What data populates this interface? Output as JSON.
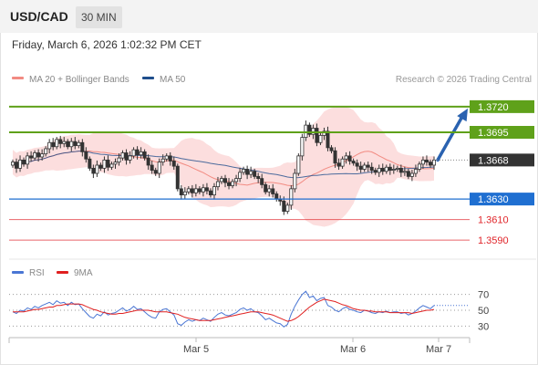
{
  "header": {
    "symbol": "USD/CAD",
    "timeframe": "30 MIN"
  },
  "datetime": "Friday, March 6, 2026 1:02:32 PM CET",
  "legend": {
    "bollinger": {
      "label": "MA 20 + Bollinger Bands",
      "color": "#f28b82"
    },
    "ma50": {
      "label": "MA 50",
      "color": "#1f4e8c"
    },
    "credit": "Research © 2026 Trading Central"
  },
  "rsi_legend": {
    "rsi": {
      "label": "RSI",
      "color": "#4a76d4"
    },
    "ma9": {
      "label": "9MA",
      "color": "#e02020"
    }
  },
  "chart_data": [
    {
      "type": "candlestick",
      "x_labels": [
        "Mar 5",
        "Mar 6",
        "Mar 7"
      ],
      "ylim": [
        1.3575,
        1.3735
      ],
      "levels": [
        {
          "value": 1.372,
          "label": "1.3720",
          "kind": "resistance",
          "color": "#5fa11a"
        },
        {
          "value": 1.3695,
          "label": "1.3695",
          "kind": "resistance",
          "color": "#5fa11a"
        },
        {
          "value": 1.3668,
          "label": "1.3668",
          "kind": "current",
          "color": "#333333"
        },
        {
          "value": 1.363,
          "label": "1.3630",
          "kind": "pivot",
          "color": "#1f6fd1"
        },
        {
          "value": 1.361,
          "label": "1.3610",
          "kind": "support",
          "color": "#e0252a"
        },
        {
          "value": 1.359,
          "label": "1.3590",
          "kind": "support",
          "color": "#e0252a"
        }
      ],
      "closes": [
        1.3666,
        1.366,
        1.3668,
        1.3664,
        1.3672,
        1.367,
        1.3675,
        1.3671,
        1.3674,
        1.3679,
        1.3685,
        1.3681,
        1.3688,
        1.3684,
        1.3686,
        1.3681,
        1.3686,
        1.3682,
        1.3685,
        1.3676,
        1.3669,
        1.366,
        1.3655,
        1.3663,
        1.366,
        1.3668,
        1.3661,
        1.3664,
        1.3666,
        1.367,
        1.3675,
        1.3668,
        1.3672,
        1.3678,
        1.3673,
        1.3676,
        1.367,
        1.3663,
        1.3658,
        1.3655,
        1.3666,
        1.3669,
        1.3672,
        1.3667,
        1.3662,
        1.364,
        1.3634,
        1.3637,
        1.364,
        1.3636,
        1.364,
        1.3637,
        1.3641,
        1.3638,
        1.3634,
        1.3642,
        1.3647,
        1.365,
        1.3646,
        1.3643,
        1.3647,
        1.365,
        1.3656,
        1.3659,
        1.3654,
        1.3657,
        1.3652,
        1.365,
        1.3644,
        1.3637,
        1.364,
        1.3635,
        1.363,
        1.3628,
        1.3618,
        1.3624,
        1.364,
        1.3655,
        1.3672,
        1.369,
        1.3702,
        1.3693,
        1.3699,
        1.3685,
        1.3692,
        1.3696,
        1.368,
        1.3677,
        1.3665,
        1.3662,
        1.3669,
        1.3672,
        1.3667,
        1.3665,
        1.3662,
        1.3659,
        1.3663,
        1.3661,
        1.3658,
        1.3656,
        1.366,
        1.3657,
        1.3661,
        1.3658,
        1.3659,
        1.366,
        1.3656,
        1.3657,
        1.3652,
        1.3655,
        1.3659,
        1.3664,
        1.3668,
        1.3666,
        1.3663,
        1.3668
      ],
      "forecast": {
        "from": 1.3668,
        "to": 1.372
      }
    },
    {
      "type": "line",
      "name": "RSI",
      "ylim": [
        20,
        80
      ],
      "ticks": [
        70,
        50,
        30
      ],
      "series": [
        {
          "name": "RSI",
          "values": [
            48,
            46,
            50,
            49,
            53,
            51,
            55,
            53,
            56,
            58,
            60,
            57,
            62,
            59,
            60,
            56,
            60,
            57,
            58,
            52,
            47,
            42,
            40,
            45,
            43,
            48,
            44,
            46,
            47,
            50,
            53,
            49,
            51,
            55,
            51,
            52,
            48,
            44,
            41,
            40,
            48,
            51,
            52,
            48,
            44,
            33,
            31,
            35,
            38,
            36,
            38,
            37,
            40,
            38,
            36,
            41,
            45,
            47,
            44,
            43,
            45,
            47,
            51,
            53,
            50,
            52,
            48,
            47,
            43,
            38,
            40,
            37,
            34,
            33,
            29,
            32,
            45,
            55,
            63,
            70,
            74,
            66,
            68,
            62,
            65,
            66,
            56,
            54,
            50,
            48,
            52,
            54,
            51,
            50,
            48,
            47,
            50,
            49,
            47,
            46,
            48,
            47,
            49,
            47,
            48,
            48,
            46,
            47,
            44,
            46,
            49,
            53,
            56,
            54,
            52,
            56
          ]
        },
        {
          "name": "9MA",
          "values": [
            48,
            48,
            48,
            48,
            49,
            50,
            51,
            51,
            52,
            53,
            54,
            54,
            56,
            56,
            57,
            58,
            58,
            58,
            58,
            57,
            55,
            53,
            51,
            50,
            48,
            47,
            46,
            45,
            45,
            46,
            46,
            47,
            48,
            49,
            50,
            50,
            50,
            50,
            49,
            48,
            48,
            48,
            48,
            47,
            46,
            45,
            43,
            41,
            40,
            39,
            38,
            37,
            37,
            37,
            37,
            38,
            39,
            40,
            41,
            42,
            43,
            44,
            45,
            46,
            47,
            48,
            48,
            48,
            47,
            46,
            45,
            44,
            42,
            40,
            38,
            36,
            37,
            39,
            42,
            46,
            50,
            54,
            57,
            60,
            62,
            64,
            63,
            62,
            61,
            59,
            57,
            56,
            54,
            52,
            51,
            50,
            50,
            49,
            49,
            48,
            48,
            48,
            48,
            47,
            47,
            47,
            47,
            47,
            47,
            46,
            47,
            48,
            49,
            50,
            50,
            51
          ]
        }
      ]
    }
  ]
}
